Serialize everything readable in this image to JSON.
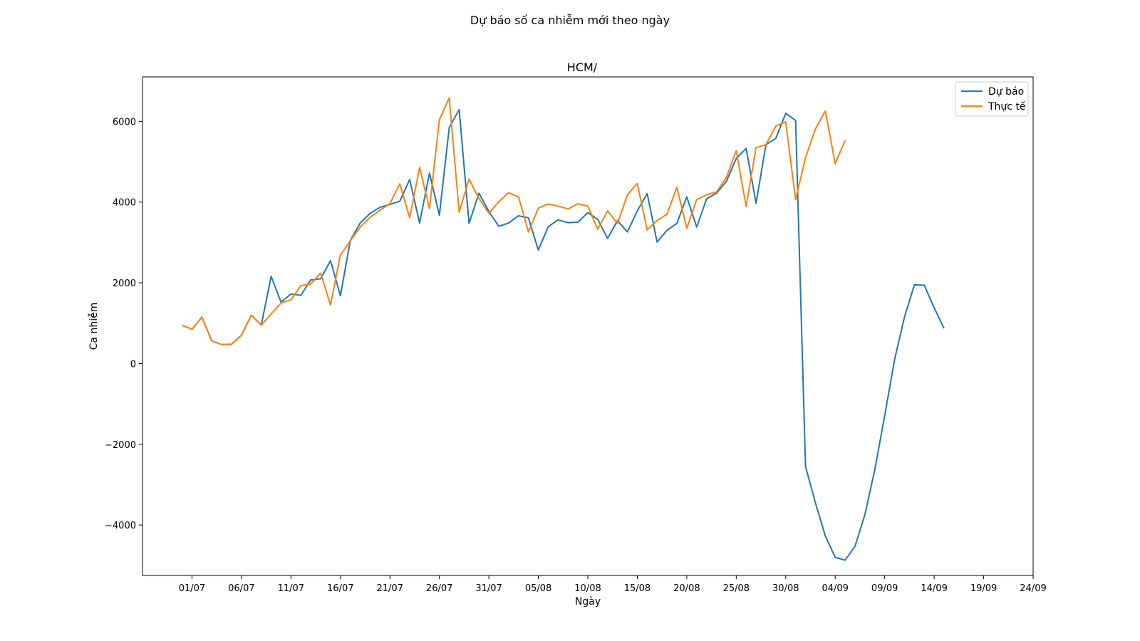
{
  "figure": {
    "suptitle": "Dự báo số ca nhiễm mới theo ngày"
  },
  "chart_data": {
    "type": "line",
    "title": "HCM/",
    "xlabel": "Ngày",
    "ylabel": "Ca nhiễm",
    "x_start_label": "30/06",
    "xtick_labels": [
      "01/07",
      "06/07",
      "11/07",
      "16/07",
      "21/07",
      "26/07",
      "31/07",
      "05/08",
      "10/08",
      "15/08",
      "20/08",
      "25/08",
      "30/08",
      "04/09",
      "09/09",
      "14/09",
      "19/09",
      "24/09"
    ],
    "yticks": [
      -4000,
      -2000,
      0,
      2000,
      4000,
      6000
    ],
    "ylim": [
      -5250,
      7100
    ],
    "xlim": [
      "26/06",
      "24/09"
    ],
    "grid": false,
    "legend_position": "top-right",
    "series": [
      {
        "name": "Dự báo",
        "color": "#1f77b4",
        "values": [
          950,
          850,
          1150,
          560,
          470,
          480,
          700,
          1200,
          950,
          2160,
          1520,
          1720,
          1690,
          2070,
          2100,
          2550,
          1680,
          3050,
          3480,
          3720,
          3870,
          3940,
          4020,
          4560,
          3480,
          4720,
          3670,
          5850,
          6290,
          3470,
          4220,
          3770,
          3400,
          3480,
          3660,
          3610,
          2810,
          3390,
          3560,
          3490,
          3500,
          3740,
          3570,
          3100,
          3540,
          3260,
          3780,
          4210,
          3010,
          3300,
          3470,
          4130,
          3380,
          4080,
          4220,
          4510,
          5080,
          5330,
          3970,
          5420,
          5580,
          6200,
          6020,
          -2550,
          -3450,
          -4270,
          -4800,
          -4870,
          -4530,
          -3740,
          -2630,
          -1290,
          100,
          1150,
          1950,
          1940,
          1380,
          870
        ]
      },
      {
        "name": "Thực tế",
        "color": "#ff7f0e",
        "values": [
          950,
          850,
          1150,
          560,
          470,
          480,
          700,
          1200,
          950,
          1230,
          1500,
          1580,
          1930,
          1970,
          2240,
          1450,
          2690,
          3040,
          3380,
          3620,
          3800,
          3960,
          4450,
          3610,
          4860,
          3840,
          6040,
          6580,
          3750,
          4570,
          4090,
          3720,
          4010,
          4230,
          4130,
          3260,
          3850,
          3950,
          3900,
          3830,
          3960,
          3900,
          3330,
          3780,
          3470,
          4180,
          4460,
          3310,
          3540,
          3700,
          4370,
          3350,
          4060,
          4180,
          4250,
          4610,
          5270,
          3890,
          5350,
          5420,
          5880,
          5990,
          4060,
          5100,
          5810,
          6260,
          4950,
          5530
        ]
      }
    ]
  }
}
